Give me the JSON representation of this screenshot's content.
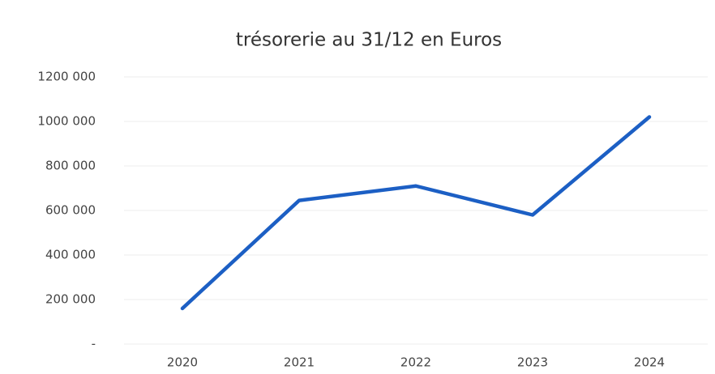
{
  "chart_data": {
    "type": "line",
    "title": "trésorerie au 31/12 en Euros",
    "categories": [
      "2020",
      "2021",
      "2022",
      "2023",
      "2024"
    ],
    "series": [
      {
        "name": "trésorerie",
        "color": "#1c5fc4",
        "values": [
          160000,
          645000,
          710000,
          580000,
          1020000
        ]
      }
    ],
    "ylim": [
      0,
      1200000
    ],
    "yticks": [
      {
        "value": 0,
        "label": "-"
      },
      {
        "value": 200000,
        "label": "200 000"
      },
      {
        "value": 400000,
        "label": "400 000"
      },
      {
        "value": 600000,
        "label": "600 000"
      },
      {
        "value": 800000,
        "label": "800 000"
      },
      {
        "value": 1000000,
        "label": "1000 000"
      },
      {
        "value": 1200000,
        "label": "1200 000"
      }
    ],
    "grid": true
  }
}
